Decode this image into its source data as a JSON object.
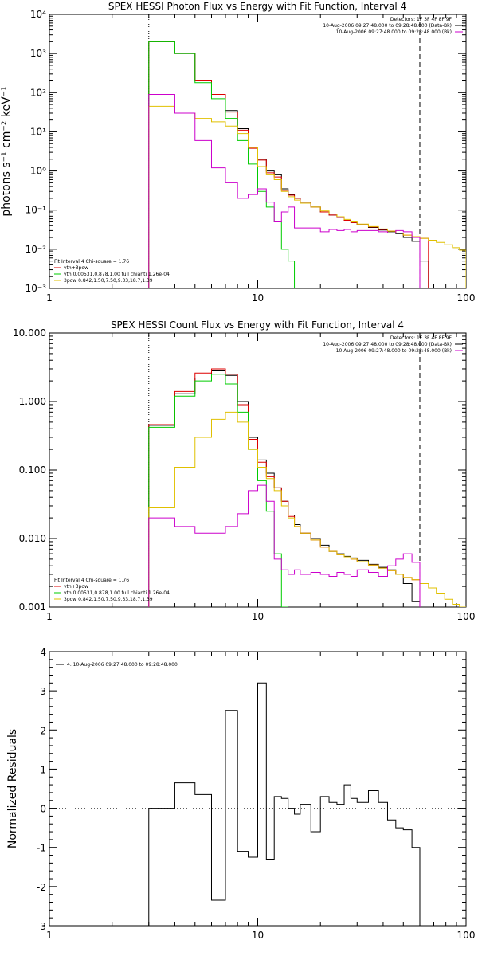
{
  "chart_data": [
    {
      "type": "line",
      "title": "SPEX HESSI Photon Flux vs Energy with Fit Function, Interval 4",
      "ylabel": "photons s⁻¹ cm⁻² keV⁻¹",
      "xlabel": "",
      "xscale": "log",
      "yscale": "log",
      "xlim": [
        1,
        100
      ],
      "ylim": [
        0.001,
        10000
      ],
      "x_ticks": [
        "1",
        "10",
        "100"
      ],
      "y_ticks": [
        "10⁻³",
        "10⁻²",
        "10⁻¹",
        "10⁰",
        "10¹",
        "10²",
        "10³",
        "10⁴"
      ],
      "vlines": [
        {
          "x": 3,
          "style": "dotted"
        },
        {
          "x": 60,
          "style": "dashed"
        }
      ],
      "legend_tr": [
        {
          "text": "Detectors: 1F 3F 4F 8F 9F",
          "color": "#000000"
        },
        {
          "text": "10-Aug-2006 09:27:48.000 to 09:28:48.000 (Data-Bk)",
          "color": "#000000"
        },
        {
          "text": "10-Aug-2006 09:27:48.000 to 09:28:48.000 (Bk)",
          "color": "#cc00cc"
        }
      ],
      "legend_bl": [
        {
          "text": "Fit Interval  4   Chi-square = 1.76",
          "color": "#000000"
        },
        {
          "text": "vth+3pow",
          "color": "#dd0000"
        },
        {
          "text": "vth 0.00531,0.878,1.00   full chianti 1.26e-04",
          "color": "#00cc00"
        },
        {
          "text": "3pow 0.842,1.50,7.50,9.33,18.7,1.39",
          "color": "#e0c000"
        }
      ],
      "edges": [
        3.0,
        4.0,
        5.0,
        6.0,
        7.0,
        8.0,
        9.0,
        10.0,
        11.0,
        12.0,
        13.0,
        14.0,
        15.0,
        16.0,
        18.0,
        20.0,
        22.0,
        24.0,
        26.0,
        28.0,
        30.0,
        34.0,
        38.0,
        42.0,
        46.0,
        50.0,
        55.0,
        60.0,
        66.0,
        72.0,
        79.0,
        86.0,
        93.0,
        100.0
      ],
      "series": [
        {
          "color": "#000000",
          "values": [
            2000,
            1000,
            200,
            90,
            35,
            12,
            4,
            2,
            1,
            0.8,
            0.35,
            0.25,
            0.2,
            0.16,
            0.12,
            0.09,
            0.075,
            0.065,
            0.055,
            0.048,
            0.042,
            0.036,
            0.031,
            0.028,
            0.025,
            0.02,
            0.016,
            0.005
          ]
        },
        {
          "color": "#dd0000",
          "values": [
            2000,
            1000,
            200,
            90,
            32,
            11,
            3.8,
            1.9,
            0.9,
            0.7,
            0.32,
            0.24,
            0.2,
            0.16,
            0.12,
            0.09,
            0.075,
            0.065,
            0.055,
            0.048,
            0.042,
            0.037,
            0.032,
            0.029,
            0.026,
            0.023,
            0.021,
            0.019
          ]
        },
        {
          "color": "#00cc00",
          "values": [
            2000,
            1000,
            180,
            70,
            22,
            6,
            1.5,
            0.3,
            0.12,
            0.05,
            0.01,
            0.005,
            0.001
          ]
        },
        {
          "color": "#e0c000",
          "values": [
            45,
            30,
            22,
            18,
            14,
            9,
            4,
            1.3,
            0.8,
            0.6,
            0.3,
            0.22,
            0.18,
            0.15,
            0.12,
            0.095,
            0.08,
            0.068,
            0.058,
            0.05,
            0.044,
            0.038,
            0.033,
            0.029,
            0.026,
            0.023,
            0.021,
            0.019,
            0.017,
            0.015,
            0.013,
            0.011,
            0.0095
          ]
        },
        {
          "color": "#cc00cc",
          "values": [
            90,
            30,
            6,
            1.2,
            0.5,
            0.2,
            0.25,
            0.35,
            0.16,
            0.05,
            0.09,
            0.12,
            0.035,
            0.035,
            0.035,
            0.028,
            0.032,
            0.03,
            0.032,
            0.028,
            0.03,
            0.03,
            0.028,
            0.026,
            0.03,
            0.028,
            0.02
          ]
        }
      ]
    },
    {
      "type": "line",
      "title": "SPEX HESSI Count Flux vs Energy with Fit Function, Interval 4",
      "ylabel": "",
      "xlabel": "",
      "xscale": "log",
      "yscale": "log",
      "xlim": [
        1,
        100
      ],
      "ylim": [
        0.001,
        10
      ],
      "x_ticks": [
        "1",
        "10",
        "100"
      ],
      "y_ticks": [
        "0.001",
        "0.010",
        "0.100",
        "1.000",
        "10.000"
      ],
      "vlines": [
        {
          "x": 3,
          "style": "dotted"
        },
        {
          "x": 60,
          "style": "dashed"
        }
      ],
      "legend_tr": [
        {
          "text": "Detectors: 1F 3F 4F 8F 9F",
          "color": "#000000"
        },
        {
          "text": "10-Aug-2006 09:27:48.000 to 09:28:48.000 (Data-Bk)",
          "color": "#000000"
        },
        {
          "text": "10-Aug-2006 09:27:48.000 to 09:28:48.000 (Bk)",
          "color": "#cc00cc"
        }
      ],
      "legend_bl": [
        {
          "text": "Fit Interval  4   Chi-square = 1.76",
          "color": "#000000"
        },
        {
          "text": "vth+3pow",
          "color": "#dd0000"
        },
        {
          "text": "vth 0.00531,0.878,1.00   full chianti 1.26e-04",
          "color": "#00cc00"
        },
        {
          "text": "3pow 0.842,1.50,7.50,9.33,18.7,1.39",
          "color": "#e0c000"
        }
      ],
      "edges": [
        3.0,
        4.0,
        5.0,
        6.0,
        7.0,
        8.0,
        9.0,
        10.0,
        11.0,
        12.0,
        13.0,
        14.0,
        15.0,
        16.0,
        18.0,
        20.0,
        22.0,
        24.0,
        26.0,
        28.0,
        30.0,
        34.0,
        38.0,
        42.0,
        46.0,
        50.0,
        55.0,
        60.0,
        66.0,
        72.0,
        79.0,
        86.0,
        93.0,
        100.0
      ],
      "series": [
        {
          "color": "#000000",
          "values": [
            0.45,
            1.3,
            2.2,
            2.8,
            2.4,
            1.0,
            0.3,
            0.14,
            0.09,
            0.055,
            0.035,
            0.022,
            0.016,
            0.012,
            0.01,
            0.008,
            0.0065,
            0.006,
            0.0055,
            0.0052,
            0.0048,
            0.0042,
            0.0038,
            0.0035,
            0.003,
            0.0022,
            0.0012
          ]
        },
        {
          "color": "#dd0000",
          "values": [
            0.46,
            1.4,
            2.6,
            3.0,
            2.5,
            0.9,
            0.28,
            0.13,
            0.08,
            0.055,
            0.035,
            0.021,
            0.015,
            0.012,
            0.0095,
            0.0075,
            0.0065,
            0.0058,
            0.0054,
            0.005,
            0.0046,
            0.0041,
            0.0037,
            0.0034,
            0.003,
            0.0027,
            0.0025
          ]
        },
        {
          "color": "#00cc00",
          "values": [
            0.42,
            1.2,
            2.0,
            2.5,
            1.8,
            0.7,
            0.2,
            0.07,
            0.025,
            0.006,
            0.001
          ]
        },
        {
          "color": "#e0c000",
          "values": [
            0.028,
            0.11,
            0.3,
            0.55,
            0.7,
            0.5,
            0.2,
            0.11,
            0.075,
            0.05,
            0.03,
            0.02,
            0.015,
            0.012,
            0.0095,
            0.0075,
            0.0065,
            0.0058,
            0.0054,
            0.005,
            0.0046,
            0.0041,
            0.0037,
            0.0034,
            0.003,
            0.0027,
            0.0025,
            0.0022,
            0.0019,
            0.0016,
            0.0013,
            0.0011,
            0.001
          ]
        },
        {
          "color": "#cc00cc",
          "values": [
            0.02,
            0.015,
            0.012,
            0.012,
            0.015,
            0.023,
            0.05,
            0.06,
            0.035,
            0.005,
            0.0035,
            0.003,
            0.0035,
            0.003,
            0.0032,
            0.003,
            0.0028,
            0.0032,
            0.003,
            0.0028,
            0.0035,
            0.0032,
            0.0028,
            0.004,
            0.005,
            0.006,
            0.0045
          ]
        }
      ]
    },
    {
      "type": "line",
      "title": "",
      "ylabel": "Normalized Residuals",
      "xlabel": "",
      "xscale": "log",
      "yscale": "linear",
      "xlim": [
        1,
        100
      ],
      "ylim": [
        -3,
        4
      ],
      "x_ticks": [
        "1",
        "10",
        "100"
      ],
      "y_ticks": [
        "-3",
        "-2",
        "-1",
        "0",
        "1",
        "2",
        "3",
        "4"
      ],
      "legend_tr": [],
      "legend_bl": [],
      "legend_tl": [
        {
          "text": "4. 10-Aug-2006 09:27:48.000 to 09:28:48.000",
          "color": "#000000"
        }
      ],
      "edges": [
        3.0,
        4.0,
        5.0,
        6.0,
        7.0,
        8.0,
        9.0,
        10.0,
        11.0,
        12.0,
        13.0,
        14.0,
        15.0,
        16.0,
        18.0,
        20.0,
        22.0,
        24.0,
        26.0,
        28.0,
        30.0,
        34.0,
        38.0,
        42.0,
        46.0,
        50.0,
        55.0,
        60.0
      ],
      "series": [
        {
          "color": "#000000",
          "values": [
            0.0,
            0.65,
            0.35,
            -2.35,
            2.5,
            -1.1,
            -1.25,
            3.2,
            -1.3,
            0.3,
            0.25,
            0.0,
            -0.15,
            0.1,
            -0.6,
            0.3,
            0.15,
            0.1,
            0.6,
            0.25,
            0.15,
            0.45,
            0.15,
            -0.3,
            -0.5,
            -0.55,
            -1.0
          ]
        }
      ]
    }
  ]
}
